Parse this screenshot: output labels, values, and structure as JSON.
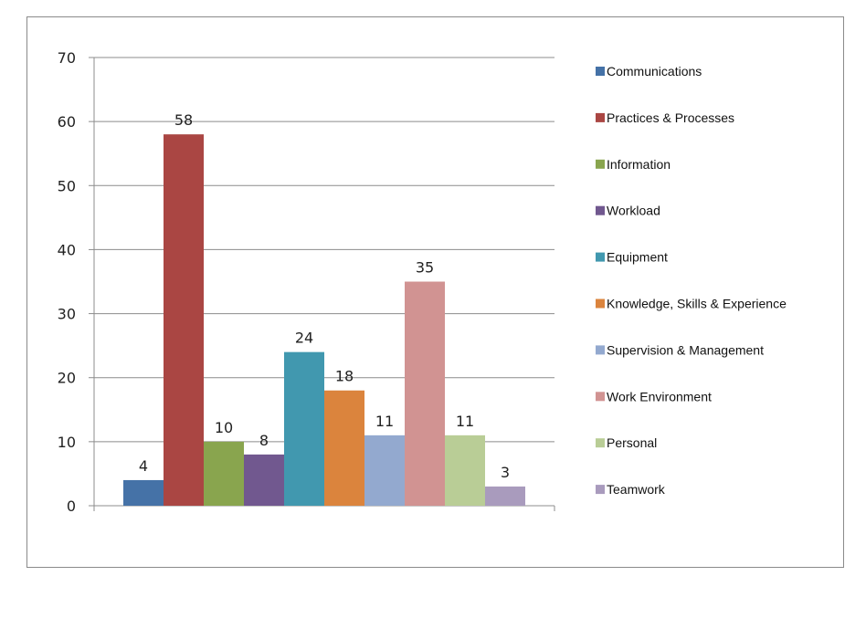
{
  "chart_data": {
    "type": "bar",
    "title": "",
    "xlabel": "",
    "ylabel": "",
    "ylim": [
      0,
      70
    ],
    "y_ticks": [
      0,
      10,
      20,
      30,
      40,
      50,
      60,
      70
    ],
    "grid": true,
    "legend_position": "right",
    "categories": [
      "Communications",
      "Practices & Processes",
      "Information",
      "Workload",
      "Equipment",
      "Knowledge, Skills & Experience",
      "Supervision & Management",
      "Work Environment",
      "Personal",
      "Teamwork"
    ],
    "values": [
      4,
      58,
      10,
      8,
      24,
      18,
      11,
      35,
      11,
      3
    ],
    "colors": [
      "#4572A7",
      "#AA4643",
      "#89A54E",
      "#71588F",
      "#4198AF",
      "#DB843D",
      "#93A9CF",
      "#D19392",
      "#B9CD96",
      "#A99BBD"
    ]
  }
}
